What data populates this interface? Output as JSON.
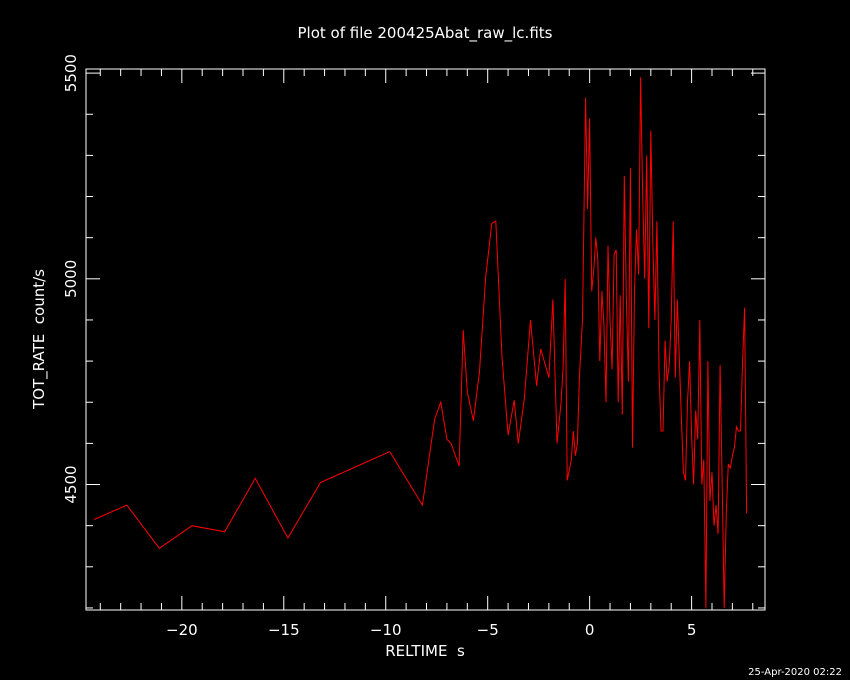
{
  "chart_data": {
    "type": "line",
    "title": "Plot of file 200425Abat_raw_lc.fits",
    "xlabel": "RELTIME  s",
    "ylabel": "TOT_RATE  count/s",
    "xlim": [
      -24.7,
      8.6
    ],
    "ylim": [
      4195,
      5510
    ],
    "xticks": [
      -20,
      -15,
      -10,
      -5,
      0,
      5
    ],
    "xtick_labels": [
      "−20",
      "−15",
      "−10",
      "−5",
      "0",
      "5"
    ],
    "yticks": [
      4500,
      5000,
      5500
    ],
    "ytick_labels": [
      "4500",
      "5000",
      "5500"
    ],
    "grid": false,
    "legend": "none",
    "line_color": "#ff0000",
    "axis_color": "#ffffff",
    "background": "#000000",
    "series": [
      {
        "x": [
          -24.3,
          -22.7,
          -21.1,
          -19.5,
          -17.9,
          -16.4,
          -14.8,
          -13.2,
          -9.8,
          -8.2,
          -7.6,
          -7.3,
          -7.0,
          -6.8,
          -6.4,
          -6.2,
          -6.0,
          -5.7,
          -5.4,
          -5.1,
          -4.8,
          -4.6,
          -4.3,
          -4.0,
          -3.7,
          -3.5,
          -3.2,
          -2.9,
          -2.6,
          -2.4,
          -2.2,
          -2.0,
          -1.8,
          -1.6,
          -1.4,
          -1.3,
          -1.2,
          -1.1,
          -0.9,
          -0.8,
          -0.7,
          -0.6,
          -0.5,
          -0.35,
          -0.2,
          -0.1,
          0.0,
          0.1,
          0.2,
          0.3,
          0.4,
          0.5,
          0.6,
          0.7,
          0.8,
          0.9,
          1.0,
          1.1,
          1.2,
          1.3,
          1.4,
          1.5,
          1.6,
          1.7,
          1.8,
          1.9,
          2.0,
          2.1,
          2.2,
          2.3,
          2.4,
          2.5,
          2.6,
          2.7,
          2.8,
          2.9,
          3.0,
          3.1,
          3.2,
          3.3,
          3.4,
          3.5,
          3.6,
          3.7,
          3.8,
          3.9,
          4.0,
          4.1,
          4.2,
          4.3,
          4.4,
          4.5,
          4.6,
          4.7,
          4.8,
          4.9,
          5.0,
          5.1,
          5.2,
          5.3,
          5.4,
          5.5,
          5.6,
          5.7,
          5.8,
          5.9,
          6.0,
          6.1,
          6.2,
          6.3,
          6.4,
          6.5,
          6.6,
          6.7,
          6.8,
          6.9,
          7.0,
          7.1,
          7.2,
          7.3,
          7.4,
          7.5,
          7.6,
          7.7
        ],
        "y": [
          4415,
          4450,
          4345,
          4400,
          4385,
          4515,
          4370,
          4505,
          4580,
          4450,
          4660,
          4700,
          4610,
          4600,
          4545,
          4875,
          4725,
          4655,
          4775,
          5005,
          5135,
          5140,
          4810,
          4620,
          4705,
          4600,
          4710,
          4900,
          4740,
          4830,
          4795,
          4760,
          4950,
          4600,
          4700,
          4785,
          5000,
          4510,
          4560,
          4630,
          4570,
          4600,
          4760,
          4900,
          5440,
          5170,
          5390,
          4970,
          5020,
          5100,
          5050,
          4800,
          4970,
          4890,
          4700,
          5080,
          4900,
          4780,
          5060,
          5070,
          4700,
          4960,
          4670,
          5250,
          4960,
          4750,
          5270,
          4590,
          4970,
          5120,
          5010,
          5490,
          5200,
          5000,
          5300,
          4880,
          5360,
          5080,
          4900,
          5140,
          4780,
          4630,
          4630,
          4850,
          4750,
          4790,
          4900,
          5140,
          4760,
          4950,
          4800,
          4660,
          4530,
          4510,
          4700,
          4800,
          4620,
          4500,
          4680,
          4610,
          4900,
          4500,
          4560,
          4200,
          4800,
          4460,
          4530,
          4400,
          4450,
          4380,
          4790,
          4500,
          4200,
          4430,
          4550,
          4540,
          4570,
          4590,
          4640,
          4630,
          4630,
          4800,
          4930,
          4430
        ]
      }
    ]
  },
  "footer": {
    "timestamp": "25-Apr-2020 02:22"
  }
}
